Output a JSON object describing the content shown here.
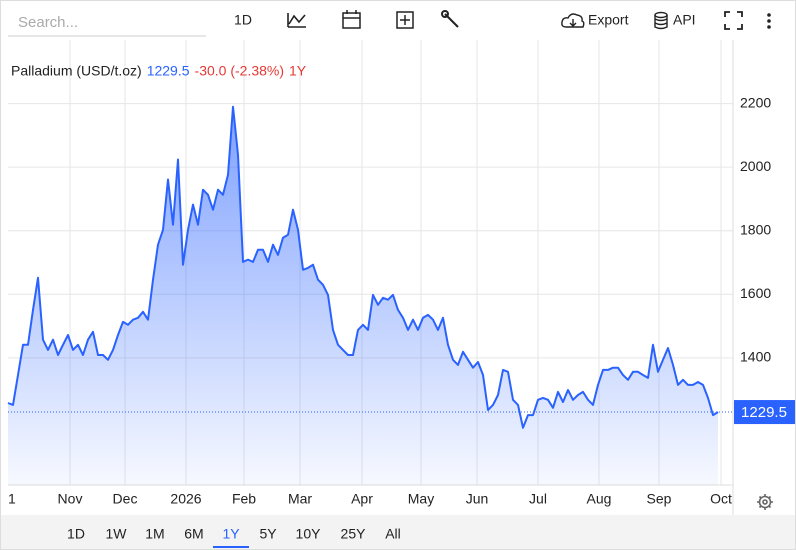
{
  "toolbar": {
    "search_placeholder": "Search...",
    "interval": "1D",
    "export": "Export",
    "api": "API"
  },
  "range_buttons": {
    "items": [
      "1D",
      "1W",
      "1M",
      "6M",
      "1Y",
      "5Y",
      "10Y",
      "25Y",
      "All"
    ],
    "selected": "1Y"
  },
  "chart_data": {
    "type": "area",
    "title": "Palladium (USD/t.oz)",
    "last_price": 1229.5,
    "change": "-30.0 (-2.38%)",
    "period": "1Y",
    "series": [
      {
        "name": "Palladium",
        "color": "#2962ff",
        "values": [
          1258,
          1252,
          1346,
          1441,
          1441,
          1551,
          1652,
          1457,
          1425,
          1457,
          1409,
          1441,
          1472,
          1425,
          1441,
          1409,
          1457,
          1482,
          1409,
          1409,
          1394,
          1425,
          1472,
          1513,
          1504,
          1520,
          1526,
          1545,
          1520,
          1646,
          1756,
          1803,
          1961,
          1819,
          2024,
          1693,
          1803,
          1882,
          1819,
          1929,
          1913,
          1866,
          1929,
          1913,
          1976,
          2190,
          2039,
          1702,
          1709,
          1702,
          1740,
          1740,
          1702,
          1756,
          1724,
          1778,
          1787,
          1866,
          1803,
          1677,
          1683,
          1693,
          1646,
          1630,
          1598,
          1488,
          1441,
          1425,
          1409,
          1409,
          1488,
          1504,
          1488,
          1598,
          1567,
          1589,
          1583,
          1598,
          1551,
          1526,
          1488,
          1520,
          1488,
          1526,
          1535,
          1520,
          1488,
          1526,
          1441,
          1394,
          1378,
          1419,
          1394,
          1369,
          1387,
          1346,
          1236,
          1252,
          1283,
          1362,
          1356,
          1268,
          1252,
          1180,
          1220,
          1220,
          1268,
          1274,
          1268,
          1243,
          1293,
          1261,
          1299,
          1268,
          1283,
          1293,
          1268,
          1252,
          1315,
          1362,
          1362,
          1369,
          1369,
          1346,
          1331,
          1356,
          1356,
          1346,
          1337,
          1441,
          1356,
          1394,
          1431,
          1378,
          1315,
          1331,
          1315,
          1315,
          1324,
          1315,
          1274,
          1220,
          1229.5
        ]
      }
    ],
    "xlim": [
      0,
      145
    ],
    "xticks": [
      {
        "value": 0,
        "label": "1"
      },
      {
        "value": 12.4,
        "label": "Nov"
      },
      {
        "value": 23.4,
        "label": "Dec"
      },
      {
        "value": 35.6,
        "label": "2026"
      },
      {
        "value": 47.2,
        "label": "Feb"
      },
      {
        "value": 58.4,
        "label": "Mar"
      },
      {
        "value": 70.8,
        "label": "Apr"
      },
      {
        "value": 82.6,
        "label": "May"
      },
      {
        "value": 93.8,
        "label": "Jun"
      },
      {
        "value": 106,
        "label": "Jul"
      },
      {
        "value": 118.2,
        "label": "Aug"
      },
      {
        "value": 130.2,
        "label": "Sep"
      },
      {
        "value": 142.6,
        "label": "Oct"
      }
    ],
    "ylim": [
      1000,
      2400
    ],
    "yticks": [
      1400,
      1600,
      1800,
      2000,
      2200
    ],
    "grid": true
  }
}
